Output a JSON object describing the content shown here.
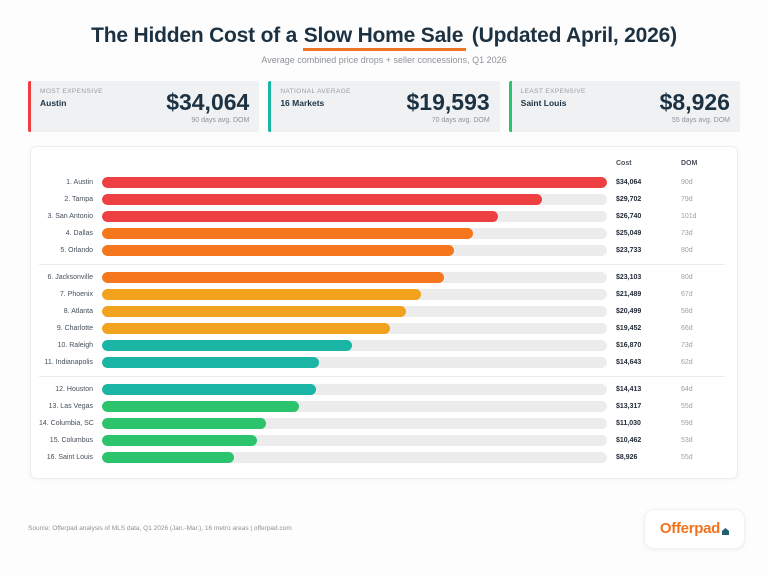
{
  "colors": {
    "red": "#ee4043",
    "orange": "#f5761d",
    "amber": "#f2a21c",
    "teal": "#1ab5a4",
    "green": "#2bc46d",
    "track": "#ececec",
    "underline": "#ee7623",
    "navy": "#1c3242",
    "logo_orange": "#f0731d",
    "logo_house": "#235f6b"
  },
  "header": {
    "title_pre": "The Hidden Cost of a ",
    "title_underlined": "Slow Home Sale",
    "title_post": " (Updated April, 2026)",
    "subtitle": "Average combined price drops + seller concessions, Q1 2026"
  },
  "stat_cards": [
    {
      "label": "MOST EXPENSIVE",
      "name": "Austin",
      "value": "$34,064",
      "sub": "90 days avg. DOM",
      "accent": "#ee4043"
    },
    {
      "label": "NATIONAL AVERAGE",
      "name": "16 Markets",
      "value": "$19,593",
      "sub": "70 days avg. DOM",
      "accent": "#1ab5a4"
    },
    {
      "label": "LEAST EXPENSIVE",
      "name": "Saint Louis",
      "value": "$8,926",
      "sub": "55 days avg. DOM",
      "accent": "#2bc46d"
    }
  ],
  "chart_data": {
    "type": "bar",
    "title": "The Hidden Cost of a Slow Home Sale (Updated April, 2026)",
    "subtitle": "Average combined price drops + seller concessions, Q1 2026",
    "columns": {
      "cost": "Cost",
      "dom": "DOM"
    },
    "xlim": [
      0,
      34064
    ],
    "max_value": 34064,
    "rows": [
      {
        "rank": 1,
        "city": "Austin",
        "cost": 34064,
        "cost_label": "$34,064",
        "dom": "90d",
        "color": "red",
        "group": 1
      },
      {
        "rank": 2,
        "city": "Tampa",
        "cost": 29702,
        "cost_label": "$29,702",
        "dom": "79d",
        "color": "red",
        "group": 1
      },
      {
        "rank": 3,
        "city": "San Antonio",
        "cost": 26740,
        "cost_label": "$26,740",
        "dom": "101d",
        "color": "red",
        "group": 1
      },
      {
        "rank": 4,
        "city": "Dallas",
        "cost": 25049,
        "cost_label": "$25,049",
        "dom": "73d",
        "color": "orange",
        "group": 1
      },
      {
        "rank": 5,
        "city": "Orlando",
        "cost": 23733,
        "cost_label": "$23,733",
        "dom": "80d",
        "color": "orange",
        "group": 1
      },
      {
        "rank": 6,
        "city": "Jacksonville",
        "cost": 23103,
        "cost_label": "$23,103",
        "dom": "80d",
        "color": "orange",
        "group": 2
      },
      {
        "rank": 7,
        "city": "Phoenix",
        "cost": 21489,
        "cost_label": "$21,489",
        "dom": "67d",
        "color": "amber",
        "group": 2
      },
      {
        "rank": 8,
        "city": "Atlanta",
        "cost": 20499,
        "cost_label": "$20,499",
        "dom": "58d",
        "color": "amber",
        "group": 2
      },
      {
        "rank": 9,
        "city": "Charlotte",
        "cost": 19452,
        "cost_label": "$19,452",
        "dom": "66d",
        "color": "amber",
        "group": 2
      },
      {
        "rank": 10,
        "city": "Raleigh",
        "cost": 16870,
        "cost_label": "$16,870",
        "dom": "73d",
        "color": "teal",
        "group": 2
      },
      {
        "rank": 11,
        "city": "Indianapolis",
        "cost": 14643,
        "cost_label": "$14,643",
        "dom": "62d",
        "color": "teal",
        "group": 2
      },
      {
        "rank": 12,
        "city": "Houston",
        "cost": 14413,
        "cost_label": "$14,413",
        "dom": "64d",
        "color": "teal",
        "group": 3
      },
      {
        "rank": 13,
        "city": "Las Vegas",
        "cost": 13317,
        "cost_label": "$13,317",
        "dom": "55d",
        "color": "green",
        "group": 3
      },
      {
        "rank": 14,
        "city": "Columbia, SC",
        "cost": 11030,
        "cost_label": "$11,030",
        "dom": "59d",
        "color": "green",
        "group": 3
      },
      {
        "rank": 15,
        "city": "Columbus",
        "cost": 10462,
        "cost_label": "$10,462",
        "dom": "53d",
        "color": "green",
        "group": 3
      },
      {
        "rank": 16,
        "city": "Saint Louis",
        "cost": 8926,
        "cost_label": "$8,926",
        "dom": "55d",
        "color": "green",
        "group": 3
      }
    ]
  },
  "footer": {
    "source": "Source: Offerpad analysis of MLS data, Q1 2026 (Jan.-Mar.), 16 metro areas | offerpad.com",
    "logo_text": "Offerpad"
  }
}
